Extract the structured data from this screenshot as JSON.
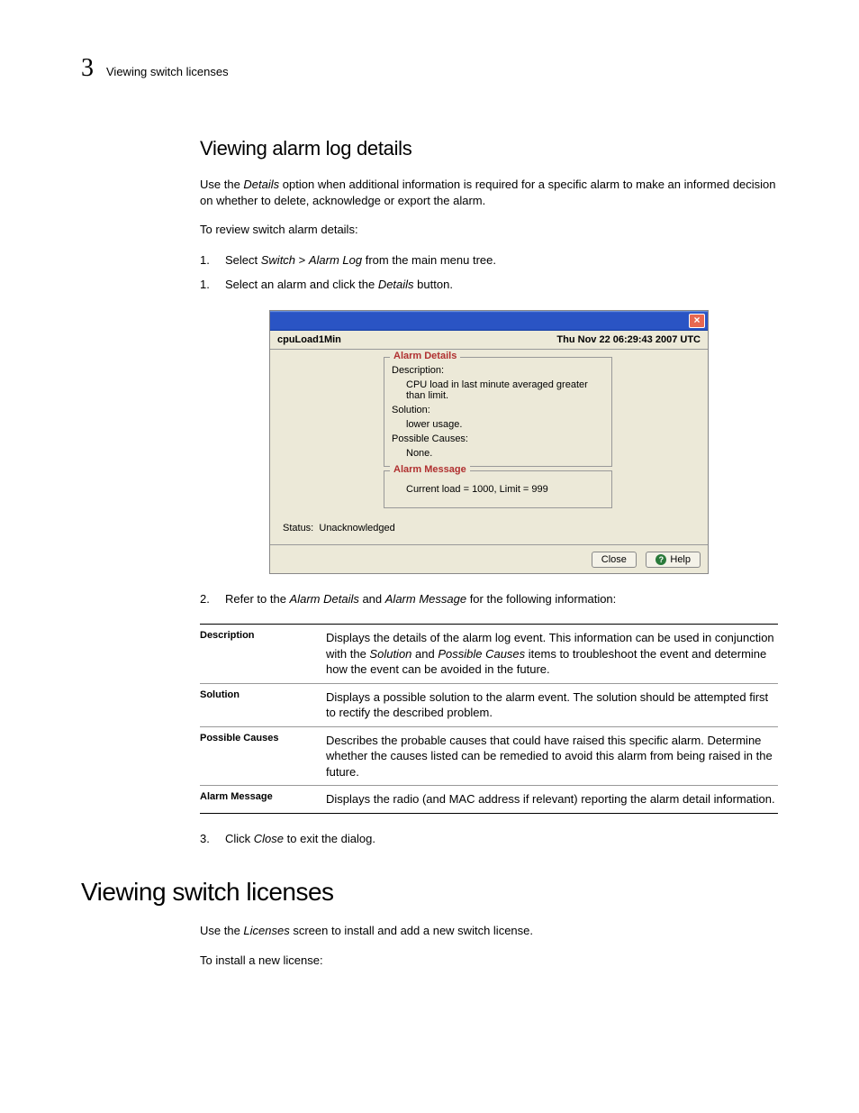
{
  "header": {
    "chapter_num": "3",
    "chapter_title": "Viewing switch licenses"
  },
  "sec1": {
    "heading": "Viewing alarm log details",
    "p1_a": "Use the ",
    "p1_i": "Details",
    "p1_b": " option when additional information is required for a specific alarm to make an informed decision on whether to delete, acknowledge or export the alarm.",
    "p2": "To review switch alarm details:",
    "step1": {
      "num": "1.",
      "a": "Select ",
      "i1": "Switch",
      "b": " > ",
      "i2": "Alarm Log",
      "c": " from the main menu tree."
    },
    "step1b": {
      "num": "1.",
      "a": "Select an alarm and click the ",
      "i": "Details",
      "b": " button."
    },
    "step2": {
      "num": "2.",
      "a": "Refer to the ",
      "i1": "Alarm Details",
      "b": " and ",
      "i2": "Alarm Message",
      "c": " for the following information:"
    },
    "step3": {
      "num": "3.",
      "a": "Click ",
      "i": "Close",
      "b": " to exit the dialog."
    }
  },
  "dialog": {
    "title_l": "cpuLoad1Min",
    "title_r": "Thu Nov 22 06:29:43 2007 UTC",
    "close_glyph": "×",
    "fs1": {
      "legend": "Alarm Details",
      "desc_label": "Description:",
      "desc_val": "CPU load in last minute averaged greater than limit.",
      "sol_label": "Solution:",
      "sol_val": "lower usage.",
      "cause_label": "Possible Causes:",
      "cause_val": "None."
    },
    "fs2": {
      "legend": "Alarm Message",
      "msg": "Current load = 1000, Limit = 999"
    },
    "status_label": "Status:",
    "status_val": "Unacknowledged",
    "close_btn": "Close",
    "help_btn": "Help",
    "help_icon": "?"
  },
  "deftable": [
    {
      "term": "Description",
      "desc_a": "Displays the details of the alarm log event. This information can be used in conjunction with the ",
      "i1": "Solution",
      "desc_b": " and ",
      "i2": "Possible Causes",
      "desc_c": " items to troubleshoot the event and determine how the event can be avoided in the future."
    },
    {
      "term": "Solution",
      "desc_a": "Displays a possible solution to the alarm event. The solution should be attempted first to rectify the described problem.",
      "i1": "",
      "desc_b": "",
      "i2": "",
      "desc_c": ""
    },
    {
      "term": "Possible Causes",
      "desc_a": "Describes the probable causes that could have raised this specific alarm. Determine whether the causes listed can be remedied to avoid this alarm from being raised in the future.",
      "i1": "",
      "desc_b": "",
      "i2": "",
      "desc_c": ""
    },
    {
      "term": "Alarm Message",
      "desc_a": "Displays the radio (and MAC address if relevant) reporting the alarm detail information.",
      "i1": "",
      "desc_b": "",
      "i2": "",
      "desc_c": ""
    }
  ],
  "sec2": {
    "heading": "Viewing switch licenses",
    "p1_a": "Use the ",
    "p1_i": "Licenses",
    "p1_b": " screen to install and add a new switch license.",
    "p2": "To install a new license:"
  },
  "colors": {
    "fieldset_legend": "#b03030",
    "titlebar_grad_top": "#7ba2e7",
    "titlebar_grad_main": "#2a54c4",
    "dialog_bg": "#ece9d8"
  }
}
